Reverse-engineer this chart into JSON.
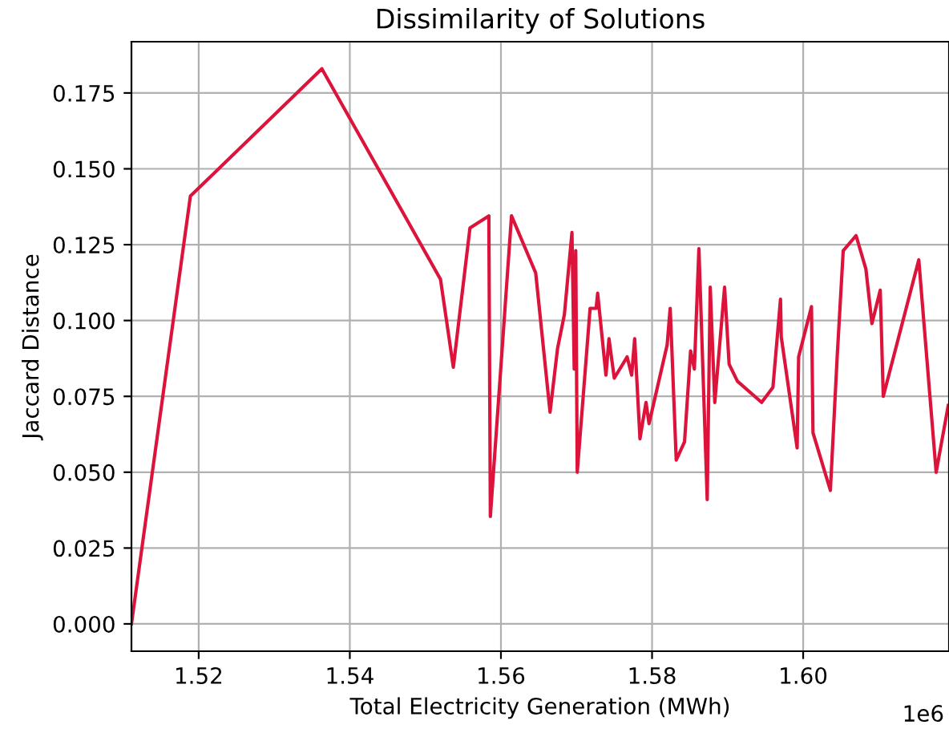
{
  "chart_data": {
    "type": "line",
    "title": "Dissimilarity of Solutions",
    "xlabel": "Total Electricity Generation (MWh)",
    "ylabel": "Jaccard Distance",
    "annotations": [
      "1e6"
    ],
    "series": [
      {
        "color": "#dc143c",
        "x": [
          1.5111,
          1.5189,
          1.5363,
          1.552,
          1.5537,
          1.5559,
          1.5584,
          1.5586,
          1.5614,
          1.5646,
          1.5665,
          1.5675,
          1.5684,
          1.5694,
          1.5697,
          1.5699,
          1.5701,
          1.5718,
          1.5726,
          1.5728,
          1.5739,
          1.5743,
          1.575,
          1.5767,
          1.5773,
          1.5777,
          1.5784,
          1.5792,
          1.5796,
          1.582,
          1.5824,
          1.5826,
          1.5832,
          1.5843,
          1.5851,
          1.5856,
          1.5862,
          1.5873,
          1.5877,
          1.5883,
          1.5896,
          1.5902,
          1.5913,
          1.5945,
          1.596,
          1.597,
          1.5971,
          1.5992,
          1.5994,
          1.6011,
          1.6013,
          1.6036,
          1.6045,
          1.6053,
          1.607,
          1.6083,
          1.6091,
          1.6102,
          1.6106,
          1.6153,
          1.6176,
          1.6192
        ],
        "values": [
          0.0,
          0.141,
          0.183,
          0.1136,
          0.0846,
          0.1305,
          0.1345,
          0.0354,
          0.1345,
          0.1157,
          0.0698,
          0.0909,
          0.102,
          0.129,
          0.084,
          0.123,
          0.05,
          0.104,
          0.104,
          0.109,
          0.082,
          0.094,
          0.081,
          0.088,
          0.082,
          0.094,
          0.061,
          0.073,
          0.066,
          0.092,
          0.104,
          0.092,
          0.054,
          0.06,
          0.09,
          0.084,
          0.1237,
          0.041,
          0.111,
          0.073,
          0.111,
          0.0856,
          0.08,
          0.073,
          0.078,
          0.107,
          0.0946,
          0.058,
          0.088,
          0.1046,
          0.063,
          0.044,
          0.088,
          0.123,
          0.128,
          0.117,
          0.099,
          0.11,
          0.075,
          0.12,
          0.05,
          0.072
        ]
      }
    ],
    "xlim": [
      1.5111,
      1.6193
    ],
    "xticks": [
      1.52,
      1.54,
      1.56,
      1.58,
      {
        "value": 1.6,
        "label": "1.60"
      }
    ],
    "ylim": [
      -0.009,
      0.1919
    ],
    "yticks": [
      {
        "value": 0.0,
        "label": "0.000"
      },
      {
        "value": 0.025,
        "label": "0.025"
      },
      {
        "value": 0.05,
        "label": "0.050"
      },
      {
        "value": 0.075,
        "label": "0.075"
      },
      {
        "value": 0.1,
        "label": "0.100"
      },
      {
        "value": 0.125,
        "label": "0.125"
      },
      {
        "value": 0.15,
        "label": "0.150"
      },
      {
        "value": 0.175,
        "label": "0.175"
      }
    ],
    "grid": true
  }
}
